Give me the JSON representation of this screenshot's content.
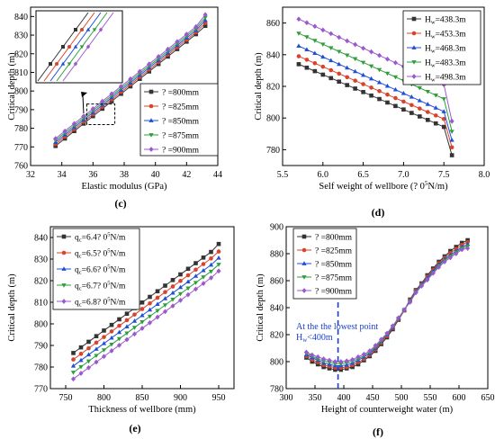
{
  "chart_data": [
    {
      "type": "line",
      "panel_label": "(c)",
      "xlabel": "Elastic modulus (GPa)",
      "ylabel": "Critical depth (m)",
      "xlim": [
        32,
        44
      ],
      "ylim": [
        760,
        845
      ],
      "xticks": [
        "32",
        "34",
        "36",
        "38",
        "40",
        "42",
        "44"
      ],
      "yticks": [
        "760",
        "770",
        "780",
        "790",
        "800",
        "810",
        "820",
        "830",
        "840"
      ],
      "legend_position": "center-right",
      "x": [
        33.6,
        34.2,
        34.8,
        35.4,
        36.0,
        36.6,
        37.2,
        37.8,
        38.4,
        39.0,
        39.6,
        40.2,
        40.8,
        41.4,
        42.0,
        42.6,
        43.2
      ],
      "series": [
        {
          "name": "? =800mm",
          "color": "#333333",
          "marker": "square",
          "values": [
            770.5,
            774.5,
            778.5,
            782.5,
            786.5,
            790.5,
            794.5,
            798.5,
            802.5,
            806.5,
            810.5,
            814.5,
            818.5,
            822.5,
            826.5,
            830.5,
            835.0
          ]
        },
        {
          "name": "? =825mm",
          "color": "#d9432b",
          "marker": "circle",
          "values": [
            771.5,
            775.5,
            779.5,
            783.5,
            787.5,
            791.5,
            795.5,
            799.5,
            803.5,
            807.5,
            811.5,
            815.5,
            819.5,
            823.5,
            827.5,
            831.5,
            836.5
          ]
        },
        {
          "name": "? =850mm",
          "color": "#1f4fd8",
          "marker": "triangle-up",
          "values": [
            772.5,
            776.5,
            780.5,
            784.5,
            788.5,
            792.5,
            796.5,
            800.5,
            804.5,
            808.5,
            812.5,
            816.5,
            820.5,
            824.5,
            828.5,
            832.5,
            838.0
          ]
        },
        {
          "name": "? =875mm",
          "color": "#2e9e3a",
          "marker": "triangle-down",
          "values": [
            773.5,
            777.5,
            781.5,
            785.5,
            789.5,
            793.5,
            797.5,
            801.5,
            805.5,
            809.5,
            813.5,
            817.5,
            821.5,
            825.5,
            829.5,
            833.5,
            839.5
          ]
        },
        {
          "name": "? =900mm",
          "color": "#9b59d0",
          "marker": "diamond",
          "values": [
            774.5,
            778.5,
            782.5,
            786.5,
            790.5,
            794.5,
            798.5,
            802.5,
            806.5,
            810.5,
            814.5,
            818.5,
            822.5,
            826.5,
            830.5,
            834.5,
            841.0
          ]
        }
      ]
    },
    {
      "type": "line",
      "panel_label": "(d)",
      "xlabel": "Self weight of wellbore (?  0",
      "xlabel_sup": "5",
      "xlabel_end": "N/m)",
      "ylabel": "Critical depth (m)",
      "xlim": [
        5.5,
        8.0
      ],
      "ylim": [
        770,
        870
      ],
      "xticks": [
        "5.5",
        "6.0",
        "6.5",
        "7.0",
        "7.5",
        "8.0"
      ],
      "yticks": [
        "780",
        "800",
        "820",
        "840",
        "860"
      ],
      "legend_position": "top-right",
      "x": [
        5.7,
        5.8,
        5.9,
        6.0,
        6.1,
        6.2,
        6.3,
        6.4,
        6.5,
        6.6,
        6.7,
        6.8,
        6.9,
        7.0,
        7.1,
        7.2,
        7.3,
        7.4,
        7.5,
        7.6
      ],
      "series": [
        {
          "name_prefix": "H",
          "name_sub": "w",
          "name_suffix": "=438.3m",
          "color": "#333333",
          "marker": "square",
          "values": [
            834.0,
            831.8,
            829.6,
            827.4,
            825.2,
            823.0,
            820.8,
            818.6,
            816.4,
            814.2,
            812.0,
            809.8,
            807.6,
            805.4,
            803.2,
            801.0,
            798.8,
            796.6,
            794.4,
            776.5
          ]
        },
        {
          "name_prefix": "H",
          "name_sub": "w",
          "name_suffix": "=453.3m",
          "color": "#d9432b",
          "marker": "circle",
          "values": [
            839.0,
            836.8,
            834.6,
            832.4,
            830.2,
            828.0,
            825.8,
            823.6,
            821.4,
            819.2,
            817.0,
            814.8,
            812.6,
            810.4,
            808.2,
            806.0,
            803.8,
            801.6,
            799.4,
            781.5
          ]
        },
        {
          "name_prefix": "H",
          "name_sub": "w",
          "name_suffix": "=468.3m",
          "color": "#1f4fd8",
          "marker": "triangle-up",
          "values": [
            845.5,
            843.2,
            840.9,
            838.6,
            836.3,
            834.0,
            831.7,
            829.4,
            827.1,
            824.8,
            822.5,
            820.2,
            817.9,
            815.6,
            813.3,
            811.0,
            808.7,
            806.4,
            804.1,
            786.0
          ]
        },
        {
          "name_prefix": "H",
          "name_sub": "w",
          "name_suffix": "=483.3m",
          "color": "#2e9e3a",
          "marker": "triangle-down",
          "values": [
            853.5,
            851.2,
            848.9,
            846.6,
            844.3,
            842.0,
            839.7,
            837.4,
            835.1,
            832.8,
            830.5,
            828.2,
            825.9,
            823.6,
            821.3,
            819.0,
            816.7,
            814.4,
            812.1,
            791.5
          ]
        },
        {
          "name_prefix": "H",
          "name_sub": "w",
          "name_suffix": "=498.3m",
          "color": "#9b59d0",
          "marker": "diamond",
          "values": [
            862.5,
            860.2,
            857.9,
            855.6,
            853.3,
            851.0,
            848.7,
            846.4,
            844.1,
            841.8,
            839.5,
            837.2,
            834.9,
            832.6,
            830.3,
            828.0,
            825.7,
            823.4,
            821.1,
            798.0
          ]
        }
      ]
    },
    {
      "type": "line",
      "panel_label": "(e)",
      "xlabel": "Thickness of wellbore (mm)",
      "ylabel": "Critical depth (m)",
      "xlim": [
        730,
        970
      ],
      "ylim": [
        770,
        845
      ],
      "xticks": [
        "750",
        "800",
        "850",
        "900",
        "950"
      ],
      "yticks": [
        "770",
        "780",
        "790",
        "800",
        "810",
        "820",
        "830",
        "840"
      ],
      "legend_position": "top-left",
      "x": [
        760,
        770,
        780,
        790,
        800,
        810,
        820,
        830,
        840,
        850,
        860,
        870,
        880,
        890,
        900,
        910,
        920,
        930,
        940,
        950
      ],
      "series": [
        {
          "name_prefix": "q",
          "name_sub": "c",
          "name_suffix": "=6.4?  0",
          "name_sup": "5",
          "name_end": "N/m",
          "color": "#333333",
          "marker": "square",
          "values": [
            786.5,
            789.1,
            791.7,
            794.3,
            796.9,
            799.5,
            802.1,
            804.7,
            807.3,
            809.9,
            812.5,
            815.1,
            817.7,
            820.3,
            822.9,
            825.5,
            828.1,
            830.7,
            833.3,
            837.0
          ]
        },
        {
          "name_prefix": "q",
          "name_sub": "c",
          "name_suffix": "=6.5?  0",
          "name_sup": "5",
          "name_end": "N/m",
          "color": "#d9432b",
          "marker": "circle",
          "values": [
            783.5,
            786.1,
            788.7,
            791.3,
            793.9,
            796.5,
            799.1,
            801.7,
            804.3,
            806.9,
            809.5,
            812.1,
            814.7,
            817.3,
            819.9,
            822.5,
            825.1,
            827.7,
            830.3,
            833.5
          ]
        },
        {
          "name_prefix": "q",
          "name_sub": "c",
          "name_suffix": "=6.6?  0",
          "name_sup": "5",
          "name_end": "N/m",
          "color": "#1f4fd8",
          "marker": "triangle-up",
          "values": [
            780.5,
            783.1,
            785.7,
            788.3,
            790.9,
            793.5,
            796.1,
            798.7,
            801.3,
            803.9,
            806.5,
            809.1,
            811.7,
            814.3,
            816.9,
            819.5,
            822.1,
            824.7,
            827.3,
            830.5
          ]
        },
        {
          "name_prefix": "q",
          "name_sub": "c",
          "name_suffix": "=6.7?  0",
          "name_sup": "5",
          "name_end": "N/m",
          "color": "#2e9e3a",
          "marker": "triangle-down",
          "values": [
            777.5,
            780.1,
            782.7,
            785.3,
            787.9,
            790.5,
            793.1,
            795.7,
            798.3,
            800.9,
            803.5,
            806.1,
            808.7,
            811.3,
            813.9,
            816.5,
            819.1,
            821.7,
            824.3,
            827.5
          ]
        },
        {
          "name_prefix": "q",
          "name_sub": "c",
          "name_suffix": "=6.8?  0",
          "name_sup": "5",
          "name_end": "N/m",
          "color": "#9b59d0",
          "marker": "diamond",
          "values": [
            774.5,
            777.1,
            779.7,
            782.3,
            784.9,
            787.5,
            790.1,
            792.7,
            795.3,
            797.9,
            800.5,
            803.1,
            805.7,
            808.3,
            810.9,
            813.5,
            816.1,
            818.7,
            821.3,
            824.5
          ]
        }
      ]
    },
    {
      "type": "line",
      "panel_label": "(f)",
      "xlabel": "Height of counterweight water (m)",
      "ylabel": "Critical depth (m)",
      "xlim": [
        300,
        650
      ],
      "ylim": [
        780,
        900
      ],
      "xticks": [
        "300",
        "350",
        "400",
        "450",
        "500",
        "550",
        "600",
        "650"
      ],
      "yticks": [
        "780",
        "800",
        "820",
        "840",
        "860",
        "880",
        "900"
      ],
      "legend_position": "top-left",
      "annotation": {
        "line1": "At the the lowest point",
        "line2_prefix": "H",
        "line2_sub": "w",
        "line2_suffix": "<400m",
        "x_ref": 390
      },
      "x": [
        335,
        345,
        355,
        365,
        375,
        385,
        395,
        405,
        415,
        425,
        435,
        445,
        455,
        465,
        475,
        485,
        495,
        505,
        515,
        525,
        535,
        545,
        555,
        565,
        575,
        585,
        595,
        605,
        615
      ],
      "series": [
        {
          "name": "? =800mm",
          "color": "#333333",
          "marker": "square",
          "values": [
            803,
            800,
            798,
            796,
            795,
            794,
            794,
            795,
            796,
            798,
            801,
            804,
            808,
            813,
            818,
            824,
            831,
            838,
            846,
            853,
            858,
            864,
            869,
            874,
            878,
            882,
            885,
            888,
            890
          ]
        },
        {
          "name": "? =825mm",
          "color": "#d9432b",
          "marker": "circle",
          "values": [
            804,
            801.5,
            799.5,
            797.5,
            796.5,
            795.5,
            795.5,
            796,
            797.5,
            799.5,
            802,
            805,
            809,
            814,
            819,
            825,
            831.5,
            838,
            845.5,
            852.5,
            857.5,
            863,
            868,
            873,
            877,
            880.5,
            883.5,
            886.5,
            888.5
          ]
        },
        {
          "name": "? =850mm",
          "color": "#1f4fd8",
          "marker": "triangle-up",
          "values": [
            805,
            803,
            801,
            799,
            798,
            797,
            797,
            797.5,
            799,
            801,
            803.5,
            806,
            810,
            815,
            820,
            825.5,
            832,
            838.5,
            845,
            852,
            857,
            862,
            867,
            872,
            876,
            879,
            882,
            885,
            887
          ]
        },
        {
          "name": "? =875mm",
          "color": "#2e9e3a",
          "marker": "triangle-down",
          "values": [
            806,
            804,
            802,
            800.5,
            799.5,
            798.5,
            798.5,
            799,
            800.5,
            802,
            804.5,
            807,
            811,
            815.5,
            820.5,
            826,
            832,
            838.5,
            844.5,
            851.5,
            856.5,
            861,
            866,
            871,
            875,
            878,
            881,
            884,
            885.5
          ]
        },
        {
          "name": "? =900mm",
          "color": "#9b59d0",
          "marker": "diamond",
          "values": [
            807,
            805,
            803.5,
            802,
            801,
            800,
            800,
            800.5,
            801.5,
            803.5,
            805.5,
            808,
            812,
            816.5,
            821,
            826.5,
            832.5,
            838.5,
            844,
            851,
            856,
            860.5,
            865.5,
            870,
            874,
            877,
            880,
            883,
            884
          ]
        }
      ]
    }
  ]
}
